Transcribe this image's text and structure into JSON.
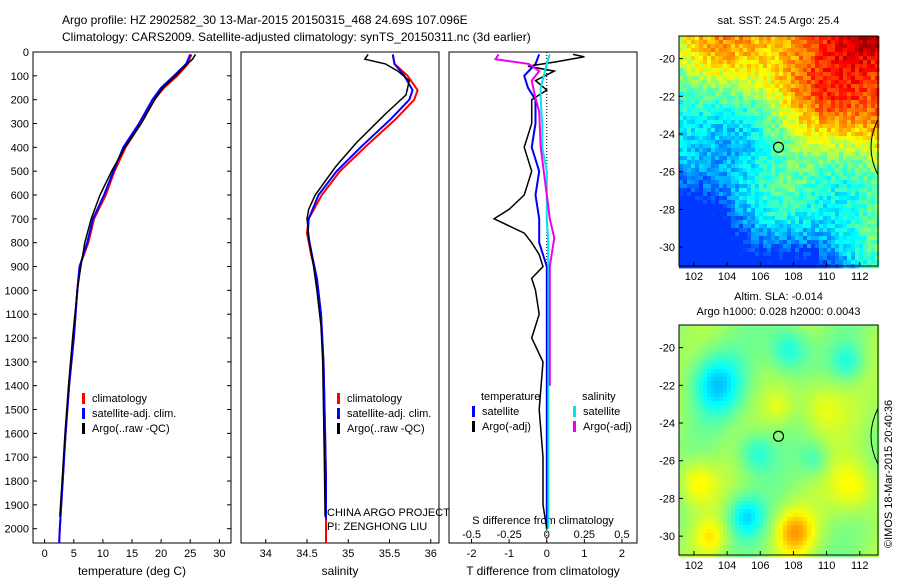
{
  "header": {
    "line1": "Argo profile: HZ 2902582_30 13-Mar-2015 20150315_468 24.69S 107.096E",
    "line2": "Climatology: CARS2009. Satellite-adjusted climatology: synTS_20150311.nc (3d earlier)"
  },
  "colors": {
    "climatology": "#ff0000",
    "satellite": "#0000ff",
    "argo": "#000000",
    "s_satellite": "#00e5ee",
    "s_argo": "#ee00ee"
  },
  "chart_data": [
    {
      "type": "line",
      "id": "temperature",
      "xlabel": "temperature (deg C)",
      "ylabel": "",
      "xlim": [
        -2,
        32
      ],
      "ylim": [
        2060,
        0
      ],
      "xticks": [
        0,
        5,
        10,
        15,
        20,
        25,
        30
      ],
      "yticks": [
        0,
        100,
        200,
        300,
        400,
        500,
        600,
        700,
        800,
        900,
        1000,
        1100,
        1200,
        1300,
        1400,
        1500,
        1600,
        1700,
        1800,
        1900,
        2000
      ],
      "legend": [
        "climatology",
        "satellite-adj. clim.",
        "Argo(..raw -QC)"
      ],
      "series": [
        {
          "name": "climatology",
          "points": [
            [
              25.2,
              10
            ],
            [
              24.6,
              50
            ],
            [
              22.8,
              100
            ],
            [
              20.5,
              150
            ],
            [
              18.8,
              200
            ],
            [
              16.5,
              300
            ],
            [
              13.9,
              400
            ],
            [
              12.0,
              500
            ],
            [
              10.5,
              600
            ],
            [
              8.5,
              700
            ],
            [
              7.5,
              800
            ],
            [
              6.0,
              900
            ],
            [
              5.6,
              1000
            ],
            [
              5.0,
              1200
            ],
            [
              4.2,
              1400
            ],
            [
              3.6,
              1600
            ],
            [
              3.1,
              1800
            ],
            [
              2.6,
              2000
            ],
            [
              2.5,
              2060
            ]
          ]
        },
        {
          "name": "satellite-adj. clim.",
          "points": [
            [
              25.0,
              10
            ],
            [
              24.3,
              50
            ],
            [
              22.2,
              100
            ],
            [
              20.0,
              150
            ],
            [
              18.5,
              200
            ],
            [
              16.2,
              300
            ],
            [
              13.5,
              400
            ],
            [
              11.8,
              500
            ],
            [
              10.2,
              600
            ],
            [
              8.3,
              700
            ],
            [
              7.3,
              800
            ],
            [
              6.0,
              900
            ],
            [
              5.6,
              1000
            ],
            [
              5.0,
              1200
            ],
            [
              4.2,
              1400
            ],
            [
              3.6,
              1600
            ],
            [
              3.1,
              1800
            ],
            [
              2.6,
              2000
            ],
            [
              2.5,
              2060
            ]
          ]
        },
        {
          "name": "Argo(..raw -QC)",
          "points": [
            [
              25.9,
              10
            ],
            [
              25.4,
              30
            ],
            [
              24.5,
              50
            ],
            [
              22.5,
              100
            ],
            [
              20.3,
              150
            ],
            [
              18.9,
              200
            ],
            [
              16.6,
              300
            ],
            [
              13.8,
              400
            ],
            [
              11.5,
              500
            ],
            [
              9.5,
              600
            ],
            [
              8.0,
              700
            ],
            [
              6.9,
              800
            ],
            [
              6.2,
              900
            ],
            [
              5.6,
              1000
            ],
            [
              4.8,
              1200
            ],
            [
              4.1,
              1400
            ],
            [
              3.5,
              1600
            ],
            [
              3.0,
              1800
            ],
            [
              2.6,
              1950
            ]
          ]
        }
      ]
    },
    {
      "type": "line",
      "id": "salinity",
      "xlabel": "salinity",
      "xlim": [
        33.7,
        36.1
      ],
      "ylim": [
        2060,
        0
      ],
      "xticks": [
        34,
        34.5,
        35,
        35.5,
        36
      ],
      "legend": [
        "climatology",
        "satellite-adj. clim.",
        "Argo(..raw -QC)"
      ],
      "annotation": [
        "CHINA ARGO PROJECT",
        "PI: ZENGHONG LIU"
      ],
      "series": [
        {
          "name": "climatology",
          "points": [
            [
              35.54,
              10
            ],
            [
              35.56,
              50
            ],
            [
              35.72,
              100
            ],
            [
              35.84,
              160
            ],
            [
              35.8,
              200
            ],
            [
              35.58,
              280
            ],
            [
              35.2,
              400
            ],
            [
              34.9,
              500
            ],
            [
              34.68,
              600
            ],
            [
              34.52,
              700
            ],
            [
              34.5,
              760
            ],
            [
              34.55,
              850
            ],
            [
              34.62,
              950
            ],
            [
              34.67,
              1100
            ],
            [
              34.7,
              1300
            ],
            [
              34.72,
              1600
            ],
            [
              34.73,
              1800
            ],
            [
              34.73,
              2000
            ],
            [
              34.73,
              2060
            ]
          ]
        },
        {
          "name": "satellite-adj. clim.",
          "points": [
            [
              35.54,
              10
            ],
            [
              35.56,
              50
            ],
            [
              35.68,
              100
            ],
            [
              35.78,
              160
            ],
            [
              35.74,
              200
            ],
            [
              35.52,
              280
            ],
            [
              35.15,
              400
            ],
            [
              34.86,
              500
            ],
            [
              34.64,
              600
            ],
            [
              34.52,
              700
            ],
            [
              34.51,
              760
            ],
            [
              34.56,
              850
            ],
            [
              34.62,
              950
            ],
            [
              34.67,
              1100
            ],
            [
              34.7,
              1300
            ],
            [
              34.72,
              1600
            ],
            [
              34.73,
              1800
            ],
            [
              34.73,
              1960
            ]
          ]
        },
        {
          "name": "Argo(..raw -QC)",
          "points": [
            [
              35.24,
              10
            ],
            [
              35.2,
              30
            ],
            [
              35.45,
              50
            ],
            [
              35.6,
              80
            ],
            [
              35.74,
              120
            ],
            [
              35.7,
              180
            ],
            [
              35.45,
              260
            ],
            [
              35.1,
              380
            ],
            [
              34.85,
              480
            ],
            [
              34.6,
              600
            ],
            [
              34.52,
              660
            ],
            [
              34.5,
              700
            ],
            [
              34.53,
              800
            ],
            [
              34.58,
              900
            ],
            [
              34.62,
              1000
            ],
            [
              34.67,
              1150
            ],
            [
              34.69,
              1300
            ],
            [
              34.7,
              1500
            ],
            [
              34.71,
              1700
            ],
            [
              34.72,
              1950
            ]
          ]
        }
      ]
    },
    {
      "type": "line",
      "id": "difference",
      "xlabel": "T difference from climatology",
      "x2label": "S difference from climatology",
      "xlim": [
        -2.6,
        2.4
      ],
      "x2lim": [
        -0.65,
        0.6
      ],
      "ylim": [
        2060,
        0
      ],
      "xticks": [
        -2,
        -1,
        0,
        1,
        2
      ],
      "x2ticks": [
        -0.5,
        -0.25,
        0,
        0.25,
        0.5
      ],
      "x2ticklabels": [
        "-0.5",
        "-0.25",
        "0",
        "0.25",
        "0.5"
      ],
      "legend_t_title": "temperature",
      "legend_s_title": "salinity",
      "legend_t": [
        "satellite",
        "Argo(-adj)"
      ],
      "legend_s": [
        "satellite",
        "Argo(-adj)"
      ],
      "series": [
        {
          "name": "T satellite",
          "points": [
            [
              -0.2,
              10
            ],
            [
              -0.3,
              50
            ],
            [
              -0.6,
              100
            ],
            [
              -0.5,
              150
            ],
            [
              -0.3,
              200
            ],
            [
              -0.3,
              300
            ],
            [
              -0.4,
              400
            ],
            [
              -0.2,
              500
            ],
            [
              -0.3,
              600
            ],
            [
              -0.2,
              700
            ],
            [
              -0.2,
              800
            ],
            [
              0.0,
              900
            ],
            [
              0.0,
              1200
            ],
            [
              0.0,
              1600
            ],
            [
              0.0,
              2000
            ]
          ]
        },
        {
          "name": "T Argo(-adj)",
          "points": [
            [
              0.7,
              10
            ],
            [
              1.0,
              20
            ],
            [
              0.3,
              40
            ],
            [
              -0.5,
              60
            ],
            [
              0.2,
              80
            ],
            [
              -0.3,
              120
            ],
            [
              0.0,
              160
            ],
            [
              -0.4,
              200
            ],
            [
              -0.4,
              300
            ],
            [
              -0.6,
              400
            ],
            [
              -0.4,
              500
            ],
            [
              -0.6,
              600
            ],
            [
              -1.0,
              660
            ],
            [
              -1.4,
              700
            ],
            [
              -0.6,
              760
            ],
            [
              -0.4,
              800
            ],
            [
              -0.2,
              850
            ],
            [
              -0.1,
              900
            ],
            [
              -0.4,
              950
            ],
            [
              -0.3,
              1000
            ],
            [
              -0.2,
              1100
            ],
            [
              -0.4,
              1200
            ],
            [
              -0.1,
              1300
            ],
            [
              -0.2,
              1500
            ],
            [
              -0.1,
              1700
            ],
            [
              -0.1,
              1900
            ],
            [
              0.0,
              2000
            ]
          ]
        },
        {
          "name": "S satellite",
          "points": [
            [
              0.02,
              10
            ],
            [
              0.0,
              50
            ],
            [
              -0.02,
              100
            ],
            [
              -0.04,
              150
            ],
            [
              -0.04,
              200
            ],
            [
              -0.03,
              300
            ],
            [
              -0.03,
              400
            ],
            [
              0.0,
              500
            ],
            [
              0.0,
              700
            ],
            [
              0.01,
              800
            ],
            [
              0.01,
              1000
            ],
            [
              0.01,
              1400
            ],
            [
              0.01,
              2000
            ]
          ]
        },
        {
          "name": "S Argo(-adj)",
          "points": [
            [
              -0.32,
              10
            ],
            [
              -0.34,
              30
            ],
            [
              -0.12,
              50
            ],
            [
              -0.05,
              80
            ],
            [
              -0.1,
              120
            ],
            [
              -0.08,
              180
            ],
            [
              -0.05,
              250
            ],
            [
              -0.04,
              400
            ],
            [
              0.0,
              600
            ],
            [
              0.02,
              700
            ],
            [
              0.05,
              780
            ],
            [
              0.03,
              860
            ],
            [
              0.02,
              900
            ],
            [
              0.02,
              1000
            ],
            [
              0.02,
              1400
            ]
          ]
        }
      ]
    },
    {
      "type": "heatmap",
      "id": "sst-map",
      "title": "sat. SST: 24.5 Argo: 25.4",
      "xticks": [
        102,
        104,
        106,
        108,
        110,
        112
      ],
      "yticks": [
        -20,
        -22,
        -24,
        -26,
        -28,
        -30
      ],
      "xlim": [
        101.1,
        113.1
      ],
      "ylim": [
        -31.0,
        -18.8
      ],
      "float_position": [
        107.1,
        -24.7
      ]
    },
    {
      "type": "heatmap",
      "id": "sla-map",
      "title": "Altim. SLA: -0.014",
      "subtitle": "Argo h1000: 0.028 h2000: 0.0043",
      "xticks": [
        102,
        104,
        106,
        108,
        110,
        112
      ],
      "yticks": [
        -20,
        -22,
        -24,
        -26,
        -28,
        -30
      ],
      "xlim": [
        101.1,
        113.1
      ],
      "ylim": [
        -31.0,
        -18.8
      ],
      "float_position": [
        107.1,
        -24.7
      ]
    }
  ],
  "credit": "©IMOS 18-Mar-2015 20:40:36"
}
